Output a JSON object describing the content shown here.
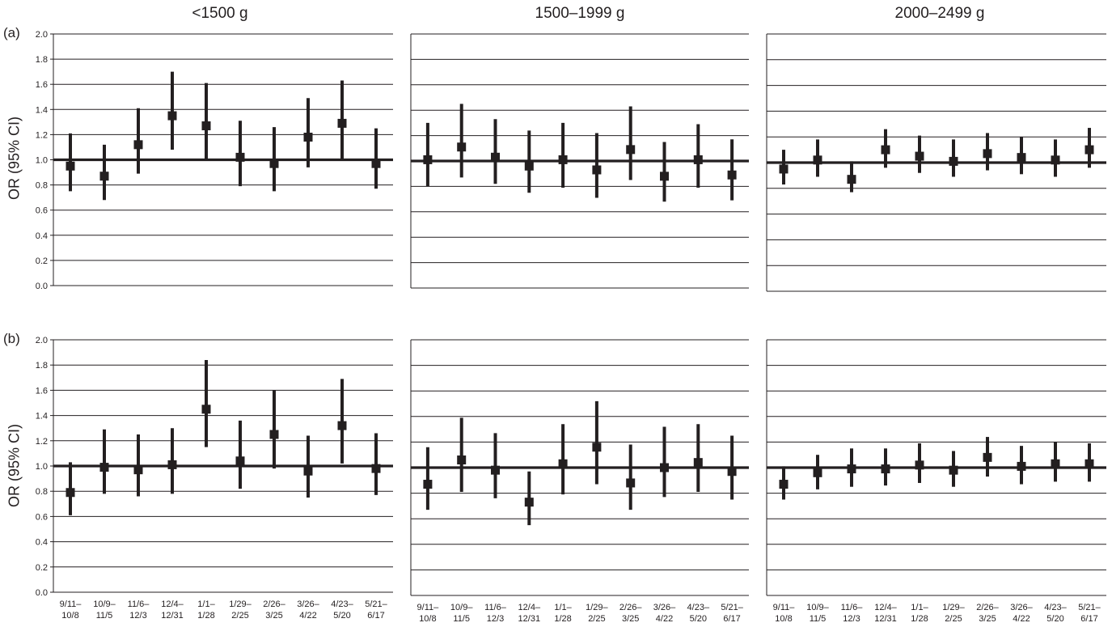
{
  "column_titles": [
    "<1500 g",
    "1500–1999 g",
    "2000–2499 g"
  ],
  "row_labels": [
    "(a)",
    "(b)"
  ],
  "ylabel": "OR (95% CI)",
  "y_ticks": [
    "0.0",
    "0.2",
    "0.4",
    "0.6",
    "0.8",
    "1.0",
    "1.2",
    "1.4",
    "1.6",
    "1.8",
    "2.0"
  ],
  "x_categories": [
    [
      "9/11–",
      "10/8"
    ],
    [
      "10/9–",
      "11/5"
    ],
    [
      "11/6–",
      "12/3"
    ],
    [
      "12/4–",
      "12/31"
    ],
    [
      "1/1–",
      "1/28"
    ],
    [
      "1/29–",
      "2/25"
    ],
    [
      "2/26–",
      "3/25"
    ],
    [
      "3/26–",
      "4/22"
    ],
    [
      "4/23–",
      "5/20"
    ],
    [
      "5/21–",
      "6/17"
    ]
  ],
  "x_categories_b_col0": [
    [
      "9/11–",
      "10/8"
    ],
    [
      "10/9–",
      "11/5"
    ],
    [
      "11/6–",
      "12/3"
    ],
    [
      "12/4–",
      "12/31"
    ],
    [
      "1/1–",
      "1/28"
    ],
    [
      "1/29–",
      "2/25"
    ],
    [
      "2/26–",
      "3/25"
    ],
    [
      "3/26–",
      "4/22"
    ],
    [
      "4/23–",
      "5/20"
    ],
    [
      "5/21–",
      "6/17"
    ]
  ],
  "chart_data": [
    {
      "type": "scatter",
      "row": "(a)",
      "column": "<1500 g",
      "ylim": [
        0,
        2
      ],
      "reference_line": 1.0,
      "or": [
        0.95,
        0.87,
        1.12,
        1.35,
        1.27,
        1.02,
        0.97,
        1.18,
        1.29,
        0.97
      ],
      "ci_low": [
        0.75,
        0.68,
        0.89,
        1.08,
        1.0,
        0.79,
        0.75,
        0.94,
        1.0,
        0.77
      ],
      "ci_high": [
        1.21,
        1.12,
        1.41,
        1.7,
        1.61,
        1.31,
        1.26,
        1.49,
        1.63,
        1.25
      ]
    },
    {
      "type": "scatter",
      "row": "(a)",
      "column": "1500–1999 g",
      "ylim": [
        0,
        2
      ],
      "reference_line": 1.0,
      "or": [
        1.01,
        1.11,
        1.03,
        0.96,
        1.01,
        0.93,
        1.09,
        0.88,
        1.01,
        0.89
      ],
      "ci_low": [
        0.8,
        0.87,
        0.82,
        0.75,
        0.79,
        0.71,
        0.85,
        0.68,
        0.79,
        0.69
      ],
      "ci_high": [
        1.3,
        1.45,
        1.33,
        1.24,
        1.3,
        1.22,
        1.43,
        1.15,
        1.29,
        1.17
      ]
    },
    {
      "type": "scatter",
      "row": "(a)",
      "column": "2000–2499 g",
      "ylim": [
        0,
        2
      ],
      "reference_line": 1.0,
      "or": [
        0.95,
        1.02,
        0.87,
        1.1,
        1.05,
        1.01,
        1.07,
        1.04,
        1.02,
        1.1
      ],
      "ci_low": [
        0.83,
        0.89,
        0.77,
        0.96,
        0.92,
        0.89,
        0.94,
        0.91,
        0.89,
        0.96
      ],
      "ci_high": [
        1.1,
        1.18,
        1.01,
        1.26,
        1.21,
        1.18,
        1.23,
        1.2,
        1.18,
        1.27
      ]
    },
    {
      "type": "scatter",
      "row": "(b)",
      "column": "<1500 g",
      "ylim": [
        0,
        2
      ],
      "reference_line": 1.0,
      "or": [
        0.79,
        0.99,
        0.97,
        1.01,
        1.45,
        1.04,
        1.25,
        0.96,
        1.32,
        0.98
      ],
      "ci_low": [
        0.61,
        0.78,
        0.76,
        0.78,
        1.15,
        0.82,
        0.98,
        0.75,
        1.02,
        0.77
      ],
      "ci_high": [
        1.03,
        1.29,
        1.25,
        1.3,
        1.84,
        1.36,
        1.6,
        1.24,
        1.69,
        1.26
      ]
    },
    {
      "type": "scatter",
      "row": "(b)",
      "column": "1500–1999 g",
      "ylim": [
        0,
        2
      ],
      "reference_line": 1.0,
      "or": [
        0.87,
        1.06,
        0.98,
        0.73,
        1.03,
        1.16,
        0.88,
        1.0,
        1.04,
        0.97
      ],
      "ci_low": [
        0.67,
        0.81,
        0.76,
        0.55,
        0.79,
        0.87,
        0.67,
        0.77,
        0.81,
        0.75
      ],
      "ci_high": [
        1.16,
        1.39,
        1.27,
        0.97,
        1.34,
        1.52,
        1.18,
        1.32,
        1.34,
        1.25
      ]
    },
    {
      "type": "scatter",
      "row": "(b)",
      "column": "2000–2499 g",
      "ylim": [
        0,
        2
      ],
      "reference_line": 1.0,
      "or": [
        0.87,
        0.96,
        0.99,
        0.99,
        1.02,
        0.98,
        1.08,
        1.01,
        1.03,
        1.03
      ],
      "ci_low": [
        0.75,
        0.83,
        0.85,
        0.86,
        0.88,
        0.85,
        0.93,
        0.87,
        0.89,
        0.89
      ],
      "ci_high": [
        1.01,
        1.1,
        1.15,
        1.15,
        1.19,
        1.13,
        1.24,
        1.17,
        1.2,
        1.19
      ]
    }
  ]
}
